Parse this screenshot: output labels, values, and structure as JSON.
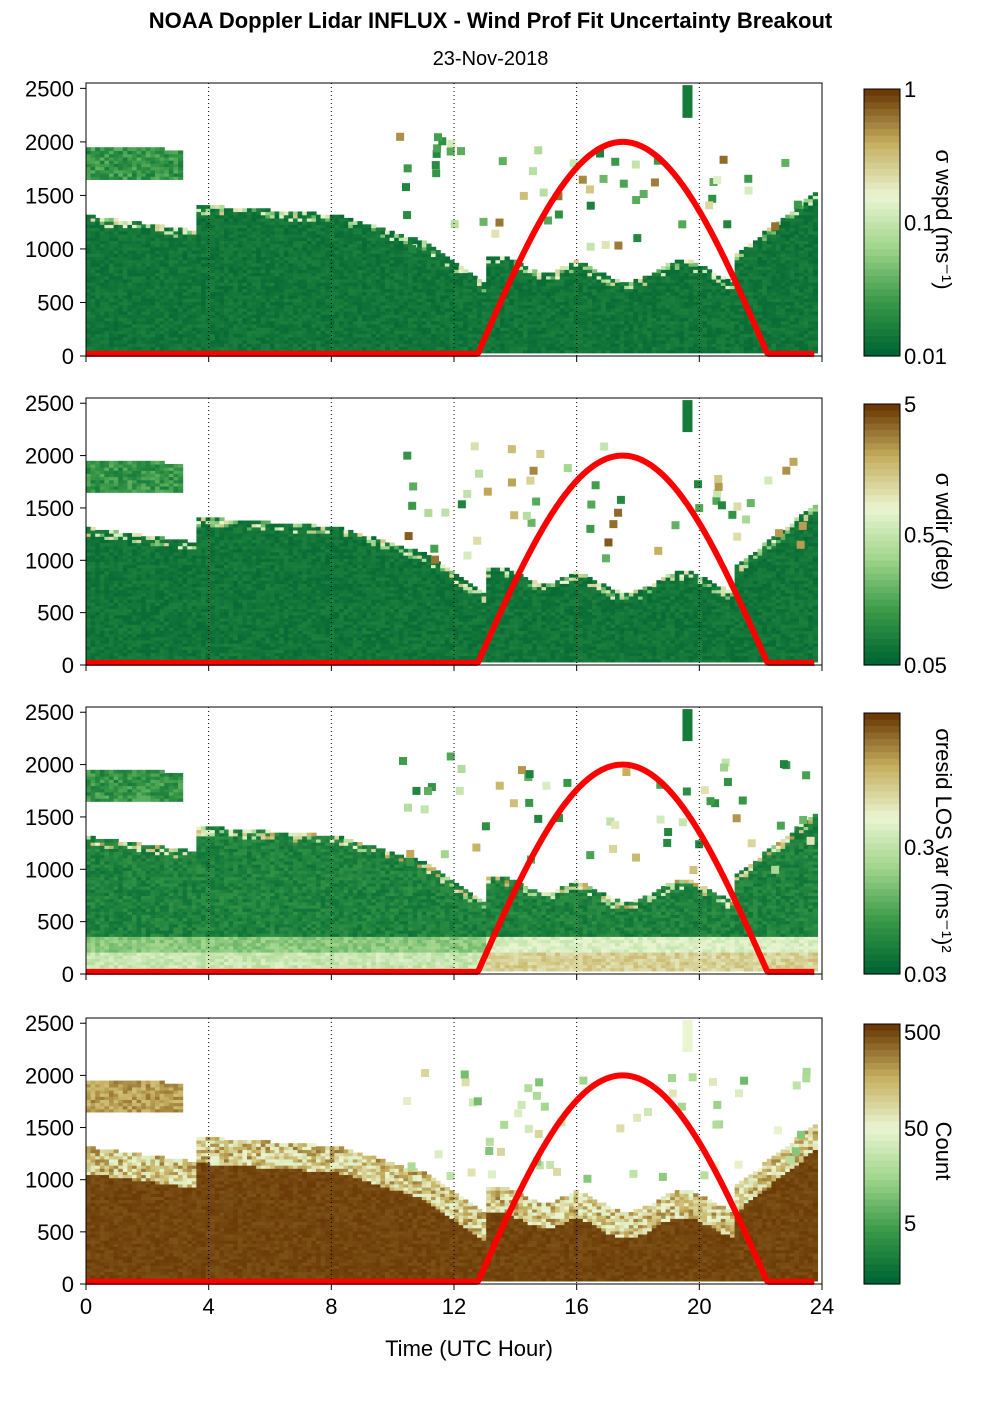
{
  "title": "NOAA Doppler Lidar INFLUX - Wind Prof Fit Uncertainty Breakout",
  "date": "23-Nov-2018",
  "chart_data": [
    {
      "type": "heatmap",
      "xlabel": "",
      "ylabel": "",
      "xlim": [
        0,
        24
      ],
      "ylim": [
        0,
        2550
      ],
      "xticks": [
        0,
        4,
        8,
        12,
        16,
        20,
        24
      ],
      "yticks": [
        0,
        500,
        1000,
        1500,
        2000,
        2500
      ],
      "colorbar": {
        "label": "σ wspd (ms⁻¹)",
        "ticks": [
          "1",
          "0.1",
          "0.01"
        ]
      },
      "sun_elevation_curve": {
        "color": "#ff0000",
        "rise_hour": 12.8,
        "set_hour": 22.3,
        "peak_hour": 17.5,
        "peak_value": 2000
      }
    },
    {
      "type": "heatmap",
      "xlabel": "",
      "ylabel": "",
      "xlim": [
        0,
        24
      ],
      "ylim": [
        0,
        2550
      ],
      "xticks": [
        0,
        4,
        8,
        12,
        16,
        20,
        24
      ],
      "yticks": [
        0,
        500,
        1000,
        1500,
        2000,
        2500
      ],
      "colorbar": {
        "label": "σ wdir (deg)",
        "ticks": [
          "5",
          "0.5",
          "0.05"
        ]
      },
      "sun_elevation_curve": {
        "color": "#ff0000",
        "rise_hour": 12.8,
        "set_hour": 22.3,
        "peak_hour": 17.5,
        "peak_value": 2000
      }
    },
    {
      "type": "heatmap",
      "xlabel": "",
      "ylabel": "",
      "xlim": [
        0,
        24
      ],
      "ylim": [
        0,
        2550
      ],
      "xticks": [
        0,
        4,
        8,
        12,
        16,
        20,
        24
      ],
      "yticks": [
        0,
        500,
        1000,
        1500,
        2000,
        2500
      ],
      "colorbar": {
        "label": "σresid LOS var (ms⁻¹)²",
        "ticks": [
          "0.3",
          "0.03"
        ]
      },
      "sun_elevation_curve": {
        "color": "#ff0000",
        "rise_hour": 12.8,
        "set_hour": 22.3,
        "peak_hour": 17.5,
        "peak_value": 2000
      }
    },
    {
      "type": "heatmap",
      "xlabel": "Time (UTC Hour)",
      "ylabel": "",
      "xlim": [
        0,
        24
      ],
      "ylim": [
        0,
        2550
      ],
      "xticks": [
        0,
        4,
        8,
        12,
        16,
        20,
        24
      ],
      "yticks": [
        0,
        500,
        1000,
        1500,
        2000,
        2500
      ],
      "colorbar": {
        "label": "Count",
        "ticks": [
          "500",
          "50",
          "5"
        ]
      },
      "sun_elevation_curve": {
        "color": "#ff0000",
        "rise_hour": 12.8,
        "set_hour": 22.3,
        "peak_hour": 17.5,
        "peak_value": 2000
      }
    }
  ],
  "colors": {
    "dark_green": "#006633",
    "mid_green": "#3a9a48",
    "light_green": "#9fd48a",
    "pale": "#eaf5d2",
    "tan": "#c6b060",
    "brown": "#6b3a06",
    "sun_curve": "#ff0000"
  }
}
